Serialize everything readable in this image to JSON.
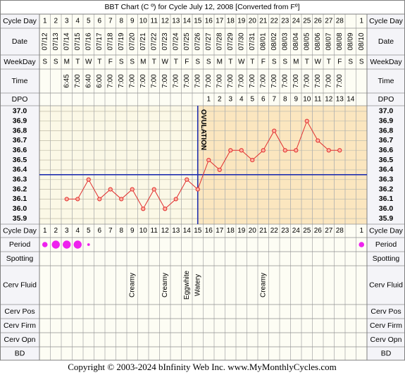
{
  "title": "BBT Chart (C º) for Cycle July 12, 2008  [Converted from Fº]",
  "copyright": "Copyright © 2003-2024 bInfinity Web Inc.    www.MyMonthlyCycles.com",
  "row_labels": {
    "cycle_day": "Cycle Day",
    "date": "Date",
    "weekday": "WeekDay",
    "time": "Time",
    "dpo": "DPO",
    "period": "Period",
    "spotting": "Spotting",
    "cerv_fluid": "Cerv Fluid",
    "cerv_pos": "Cerv Pos",
    "cerv_firm": "Cerv Firm",
    "cerv_opn": "Cerv Opn",
    "bd": "BD"
  },
  "chart_data": {
    "type": "line",
    "categories": [
      1,
      2,
      3,
      4,
      5,
      6,
      7,
      8,
      9,
      10,
      11,
      12,
      13,
      14,
      15,
      16,
      17,
      18,
      19,
      20,
      21,
      22,
      23,
      24,
      25,
      26,
      27,
      28,
      null,
      1
    ],
    "dates": [
      "07/12",
      "07/13",
      "07/14",
      "07/15",
      "07/16",
      "07/17",
      "07/18",
      "07/19",
      "07/20",
      "07/21",
      "07/22",
      "07/23",
      "07/24",
      "07/25",
      "07/26",
      "07/27",
      "07/28",
      "07/29",
      "07/30",
      "07/31",
      "08/01",
      "08/02",
      "08/03",
      "08/04",
      "08/05",
      "08/06",
      "08/07",
      "08/08",
      "08/09",
      "08/10"
    ],
    "weekdays": [
      "S",
      "S",
      "M",
      "T",
      "W",
      "T",
      "F",
      "S",
      "S",
      "M",
      "T",
      "W",
      "T",
      "F",
      "S",
      "S",
      "M",
      "T",
      "W",
      "T",
      "F",
      "S",
      "S",
      "M",
      "T",
      "W",
      "T",
      "F",
      "S",
      "S"
    ],
    "times": [
      null,
      null,
      "6:45",
      "7:00",
      "6:40",
      "6:00",
      "7:00",
      "7:00",
      "7:00",
      "7:00",
      "7:00",
      "7:00",
      "7:00",
      "7:00",
      "7:00",
      "7:00",
      "7:00",
      "7:00",
      "7:00",
      "7:00",
      "7:00",
      "7:00",
      "7:00",
      "7:00",
      "7:00",
      "7:00",
      "7:00",
      "7:00",
      null,
      null
    ],
    "dpo": [
      null,
      null,
      null,
      null,
      null,
      null,
      null,
      null,
      null,
      null,
      null,
      null,
      null,
      null,
      null,
      1,
      2,
      3,
      4,
      5,
      6,
      7,
      8,
      9,
      10,
      11,
      12,
      13,
      14,
      null
    ],
    "values": [
      null,
      null,
      36.1,
      36.1,
      36.3,
      36.1,
      36.2,
      36.1,
      36.2,
      36.0,
      36.2,
      36.0,
      36.1,
      36.3,
      36.2,
      36.5,
      36.4,
      36.6,
      36.6,
      36.5,
      36.6,
      36.8,
      36.6,
      36.6,
      36.9,
      36.7,
      36.6,
      36.6,
      null,
      null
    ],
    "color": "#e03030",
    "ylim": [
      35.85,
      37.05
    ],
    "yticks": [
      35.9,
      {
        "value": 36.0,
        "label": "36.0"
      },
      36.1,
      36.2,
      36.3,
      36.4,
      36.5,
      36.6,
      36.7,
      36.8,
      36.9,
      {
        "value": 37.0,
        "label": "37.0"
      }
    ],
    "grid": true,
    "coverline": 36.35,
    "coverline_color": "#2030b0",
    "ovulation_day": 15,
    "ovulation_label": "OVULATION",
    "period": [
      2,
      3,
      3,
      3,
      1,
      null,
      null,
      null,
      null,
      null,
      null,
      null,
      null,
      null,
      null,
      null,
      null,
      null,
      null,
      null,
      null,
      null,
      null,
      null,
      null,
      null,
      null,
      null,
      null,
      2
    ],
    "period_color": "#ee22ee",
    "cerv_fluid": [
      null,
      null,
      null,
      null,
      null,
      null,
      null,
      null,
      "Creamy",
      null,
      null,
      "Creamy",
      null,
      "Eggwhite",
      "Watery",
      null,
      null,
      null,
      null,
      null,
      "Creamy",
      null,
      null,
      null,
      null,
      null,
      null,
      null,
      null,
      null
    ]
  }
}
